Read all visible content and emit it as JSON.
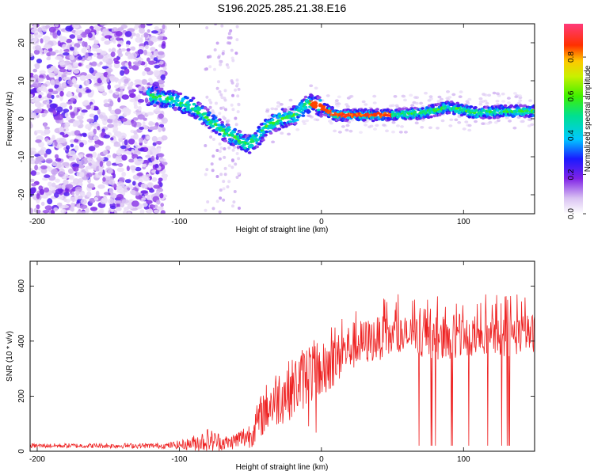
{
  "title": "S196.2025.285.21.38.E16",
  "chart_data": [
    {
      "type": "heatmap",
      "xlabel": "Height of straight line (km)",
      "ylabel": "Frequency (Hz)",
      "xlim": [
        -205,
        150
      ],
      "ylim": [
        -25,
        25
      ],
      "xticks": [
        -200,
        -100,
        0,
        100
      ],
      "yticks": [
        -20,
        -10,
        0,
        10,
        20
      ],
      "colorbar": {
        "label": "Normalized spectral amplitude",
        "range": [
          0,
          0.97
        ],
        "ticks": [
          0.0,
          0.2,
          0.4,
          0.6,
          0.8
        ],
        "tick_labels": [
          "0.0",
          "0.2",
          "0.4",
          "0.6",
          "0.8"
        ],
        "stops": [
          {
            "v": 0.0,
            "color": "#ffffff"
          },
          {
            "v": 0.08,
            "color": "#d9c2f2"
          },
          {
            "v": 0.18,
            "color": "#7f22e6"
          },
          {
            "v": 0.28,
            "color": "#1a1aff"
          },
          {
            "v": 0.38,
            "color": "#00c8ff"
          },
          {
            "v": 0.5,
            "color": "#00e090"
          },
          {
            "v": 0.6,
            "color": "#40f000"
          },
          {
            "v": 0.7,
            "color": "#c8f000"
          },
          {
            "v": 0.78,
            "color": "#ffc800"
          },
          {
            "v": 0.86,
            "color": "#ff3000"
          },
          {
            "v": 0.97,
            "color": "#ff3a7a"
          }
        ]
      },
      "ridge": [
        {
          "x": -120,
          "y": 6
        },
        {
          "x": -105,
          "y": 5
        },
        {
          "x": -90,
          "y": 3
        },
        {
          "x": -80,
          "y": 0
        },
        {
          "x": -70,
          "y": -3
        },
        {
          "x": -60,
          "y": -5
        },
        {
          "x": -52,
          "y": -7
        },
        {
          "x": -45,
          "y": -5
        },
        {
          "x": -38,
          "y": -2
        },
        {
          "x": -28,
          "y": 0
        },
        {
          "x": -18,
          "y": 1
        },
        {
          "x": -10,
          "y": 4
        },
        {
          "x": -5,
          "y": 4
        },
        {
          "x": 0,
          "y": 3
        },
        {
          "x": 10,
          "y": 1
        },
        {
          "x": 30,
          "y": 1
        },
        {
          "x": 50,
          "y": 1
        },
        {
          "x": 70,
          "y": 1.5
        },
        {
          "x": 90,
          "y": 3
        },
        {
          "x": 110,
          "y": 1.5
        },
        {
          "x": 130,
          "y": 2
        },
        {
          "x": 150,
          "y": 2
        }
      ]
    },
    {
      "type": "line",
      "xlabel": "Height of straight line (km)",
      "ylabel": "SNR (10 * v/v)",
      "xlim": [
        -205,
        150
      ],
      "ylim": [
        0,
        690
      ],
      "xticks": [
        -200,
        -100,
        0,
        100
      ],
      "yticks": [
        0,
        200,
        400,
        600
      ],
      "color": "#ee2222",
      "envelope": [
        {
          "x": -205,
          "base": 20,
          "noise": 8
        },
        {
          "x": -110,
          "base": 20,
          "noise": 10
        },
        {
          "x": -95,
          "base": 25,
          "noise": 20
        },
        {
          "x": -80,
          "base": 40,
          "noise": 45
        },
        {
          "x": -65,
          "base": 30,
          "noise": 25
        },
        {
          "x": -50,
          "base": 60,
          "noise": 50
        },
        {
          "x": -40,
          "base": 150,
          "noise": 90
        },
        {
          "x": -30,
          "base": 200,
          "noise": 110
        },
        {
          "x": -20,
          "base": 230,
          "noise": 110
        },
        {
          "x": -10,
          "base": 280,
          "noise": 120
        },
        {
          "x": 0,
          "base": 300,
          "noise": 110
        },
        {
          "x": 10,
          "base": 330,
          "noise": 90
        },
        {
          "x": 20,
          "base": 380,
          "noise": 90
        },
        {
          "x": 40,
          "base": 410,
          "noise": 80
        },
        {
          "x": 60,
          "base": 420,
          "noise": 70
        },
        {
          "x": 80,
          "base": 410,
          "noise": 80
        },
        {
          "x": 100,
          "base": 420,
          "noise": 80
        },
        {
          "x": 120,
          "base": 410,
          "noise": 75
        },
        {
          "x": 150,
          "base": 430,
          "noise": 70
        }
      ],
      "dropouts": {
        "from": 55,
        "to": 135,
        "value": 20
      }
    }
  ]
}
